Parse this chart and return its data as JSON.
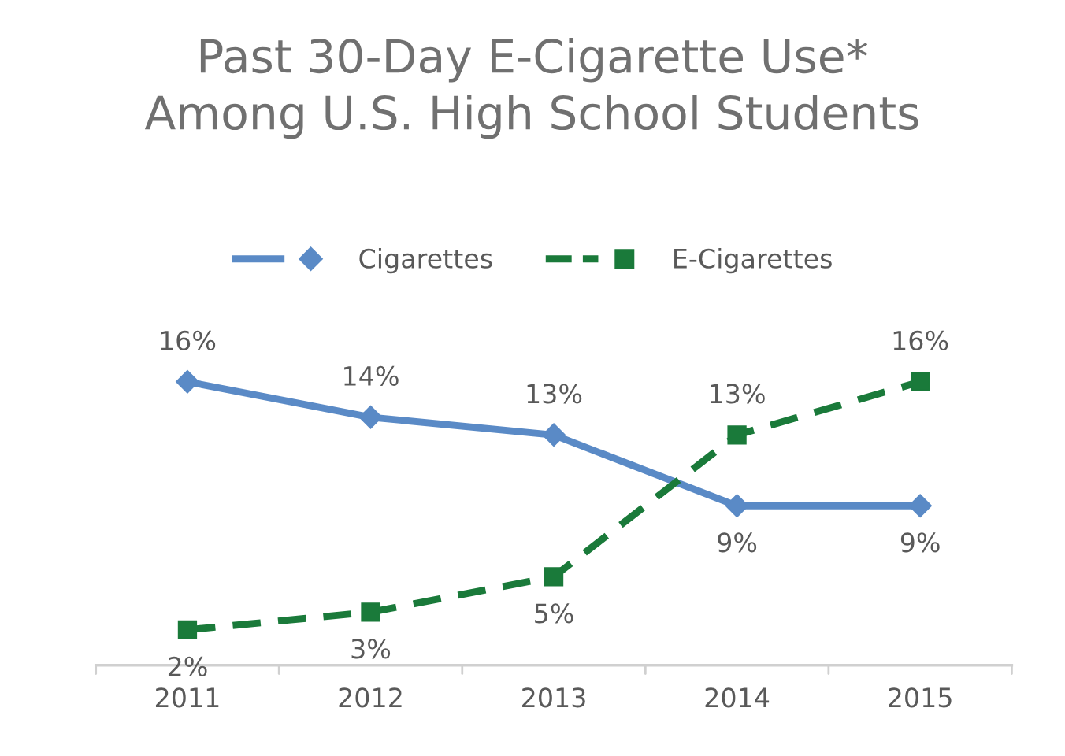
{
  "chart_data": {
    "type": "line",
    "title": "Past 30-Day E-Cigarette Use*\nAmong U.S. High School Students",
    "categories": [
      "2011",
      "2012",
      "2013",
      "2014",
      "2015"
    ],
    "series": [
      {
        "name": "Cigarettes",
        "color": "#5a8ac6",
        "values": [
          16,
          14,
          13,
          9,
          9
        ],
        "value_labels": [
          "16%",
          "14%",
          "13%",
          "9%",
          "9%"
        ],
        "marker": "diamond",
        "line_style": "solid"
      },
      {
        "name": "E-Cigarettes",
        "color": "#1a7a3a",
        "values": [
          2,
          3,
          5,
          13,
          16
        ],
        "value_labels": [
          "2%",
          "3%",
          "5%",
          "13%",
          "16%"
        ],
        "marker": "square",
        "line_style": "dashed"
      }
    ],
    "legend": "top",
    "grid": false,
    "tick_labels": "x"
  }
}
